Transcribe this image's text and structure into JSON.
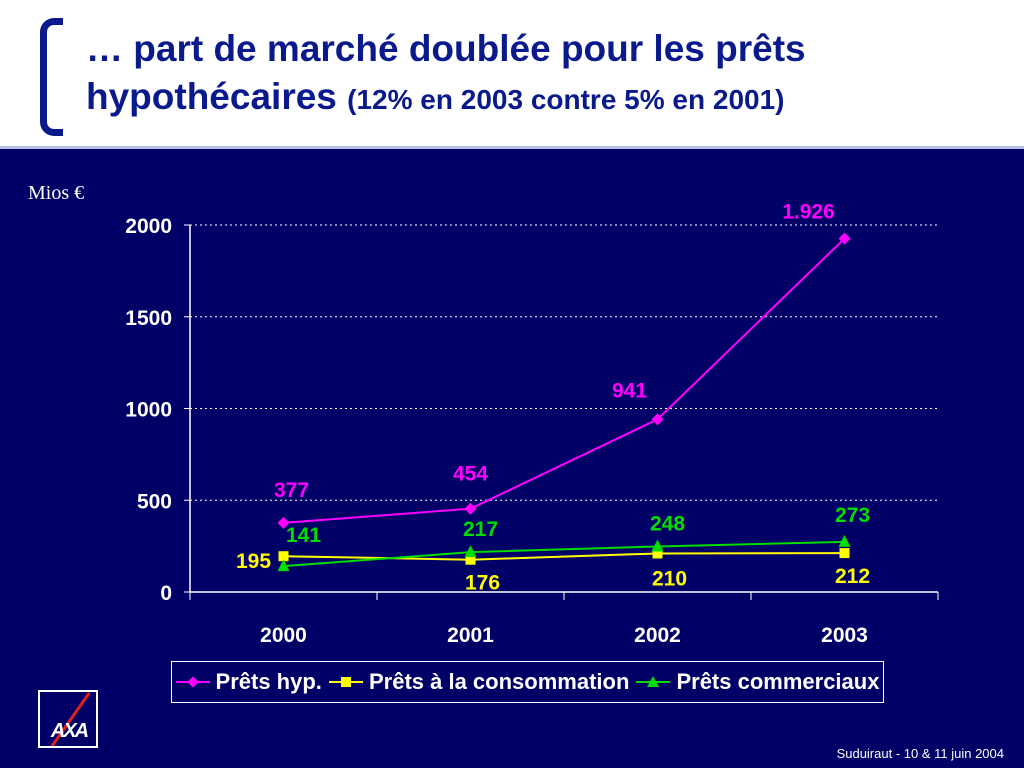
{
  "header": {
    "title_line1": "… part de marché doublée pour les prêts",
    "title_line2": "hypothécaires",
    "title_sub": "(12% en 2003 contre 5% en 2001)"
  },
  "footer": {
    "text": "Suduiraut - 10 & 11 juin 2004"
  },
  "logo": {
    "text": "AXA"
  },
  "chart_data": {
    "type": "line",
    "title": "",
    "ylabel": "Mios €",
    "xlabel": "",
    "categories": [
      "2000",
      "2001",
      "2002",
      "2003"
    ],
    "ylim": [
      0,
      2000
    ],
    "yticks": [
      0,
      500,
      1000,
      1500,
      2000
    ],
    "grid": true,
    "legend_position": "bottom",
    "series": [
      {
        "name": "Prêts hyp.",
        "values": [
          377,
          454,
          941,
          1926
        ],
        "labels": [
          "377",
          "454",
          "941",
          "1.926"
        ],
        "color": "#ff00ff",
        "marker": "diamond"
      },
      {
        "name": "Prêts à la consommation",
        "values": [
          195,
          176,
          210,
          212
        ],
        "labels": [
          "195",
          "176",
          "210",
          "212"
        ],
        "color": "#ffff00",
        "marker": "square"
      },
      {
        "name": "Prêts commerciaux",
        "values": [
          141,
          217,
          248,
          273
        ],
        "labels": [
          "141",
          "217",
          "248",
          "273"
        ],
        "color": "#00dd00",
        "marker": "triangle"
      }
    ]
  }
}
